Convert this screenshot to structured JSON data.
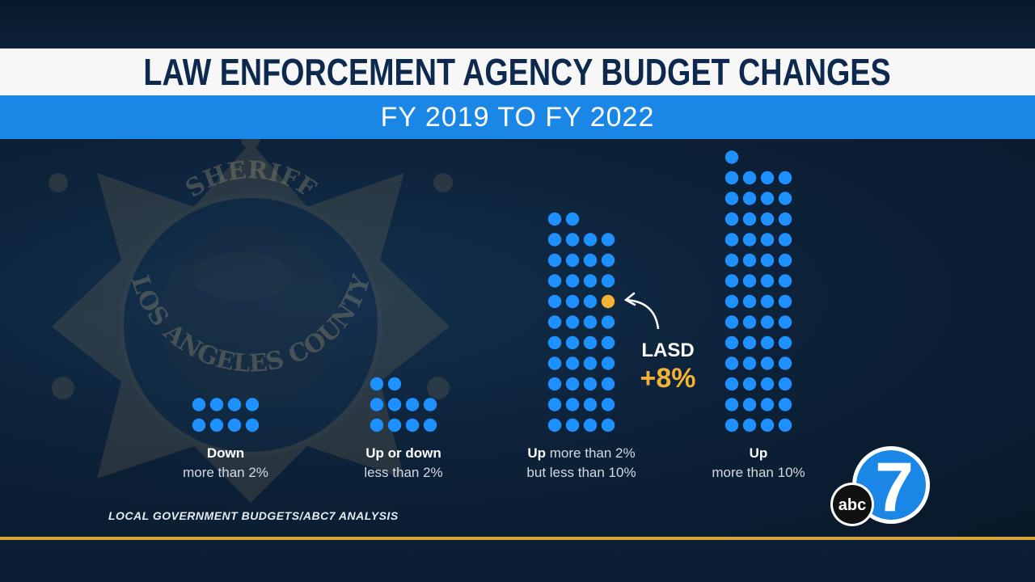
{
  "title": "LAW ENFORCEMENT AGENCY BUDGET CHANGES",
  "subtitle": "FY 2019 TO FY 2022",
  "badge": {
    "top_text": "SHERIFF",
    "bottom_text": "LOS ANGELES COUNTY"
  },
  "chart_data": {
    "type": "dot-matrix",
    "title": "LAW ENFORCEMENT AGENCY BUDGET CHANGES",
    "subtitle": "FY 2019 TO FY 2022",
    "dot_color": "#1e90ff",
    "highlight_color": "#f2b233",
    "series": [
      {
        "label_bold": "Down",
        "label_rest": "",
        "label_line2": "more than 2%",
        "value": 8
      },
      {
        "label_bold": "",
        "label_rest": "Up or down",
        "label_line2": "less than 2%",
        "value": 10
      },
      {
        "label_bold": "Up",
        "label_rest": " more than 2%",
        "label_line2": "but less than 10%",
        "value": 42,
        "highlight_index": 17
      },
      {
        "label_bold": "Up",
        "label_rest": "",
        "label_line2": "more than 10%",
        "value": 53
      }
    ],
    "annotation": {
      "label": "LASD",
      "value": "+8%"
    }
  },
  "source": "LOCAL GOVERNMENT BUDGETS/ABC7 ANALYSIS",
  "logo": {
    "number": "7",
    "network": "abc"
  }
}
